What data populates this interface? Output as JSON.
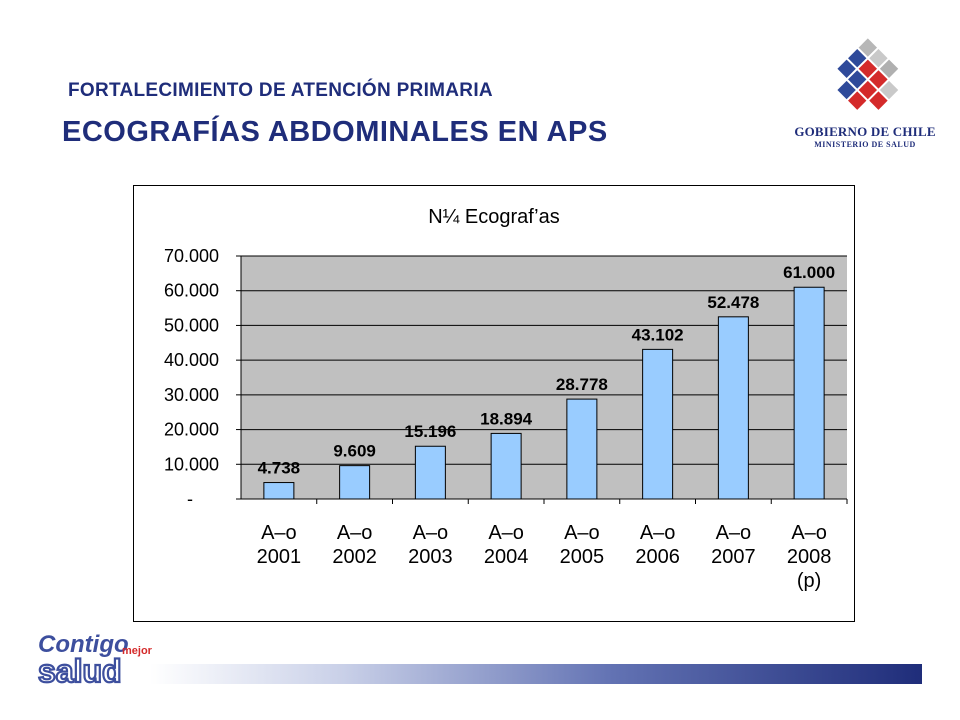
{
  "header": {
    "subtitle": "FORTALECIMIENTO DE ATENCIÓN PRIMARIA",
    "title": "ECOGRAFÍAS ABDOMINALES EN APS"
  },
  "logo": {
    "line1": "GOBIERNO DE CHILE",
    "line2": "MINISTERIO DE SALUD"
  },
  "brand": {
    "word1": "Contigo",
    "word2": "mejor",
    "word3": "salud"
  },
  "colors": {
    "navy": "#1f2d7a",
    "bar_fill": "#99ccff",
    "plot_bg": "#c0c0c0"
  },
  "chart_data": {
    "type": "bar",
    "title": "N¼ Ecograf’as",
    "categories": [
      "A–o 2001",
      "A–o 2002",
      "A–o 2003",
      "A–o 2004",
      "A–o 2005",
      "A–o 2006",
      "A–o 2007",
      "A–o 2008 (p)"
    ],
    "category_lines": [
      [
        "A–o",
        "2001"
      ],
      [
        "A–o",
        "2002"
      ],
      [
        "A–o",
        "2003"
      ],
      [
        "A–o",
        "2004"
      ],
      [
        "A–o",
        "2005"
      ],
      [
        "A–o",
        "2006"
      ],
      [
        "A–o",
        "2007"
      ],
      [
        "A–o",
        "2008",
        "(p)"
      ]
    ],
    "values": [
      4738,
      9609,
      15196,
      18894,
      28778,
      43102,
      52478,
      61000
    ],
    "value_labels": [
      "4.738",
      "9.609",
      "15.196",
      "18.894",
      "28.778",
      "43.102",
      "52.478",
      "61.000"
    ],
    "ylim": [
      0,
      70000
    ],
    "yticks": [
      0,
      10000,
      20000,
      30000,
      40000,
      50000,
      60000,
      70000
    ],
    "ytick_labels": [
      "-",
      "10.000",
      "20.000",
      "30.000",
      "40.000",
      "50.000",
      "60.000",
      "70.000"
    ],
    "grid": true,
    "legend": "none"
  }
}
